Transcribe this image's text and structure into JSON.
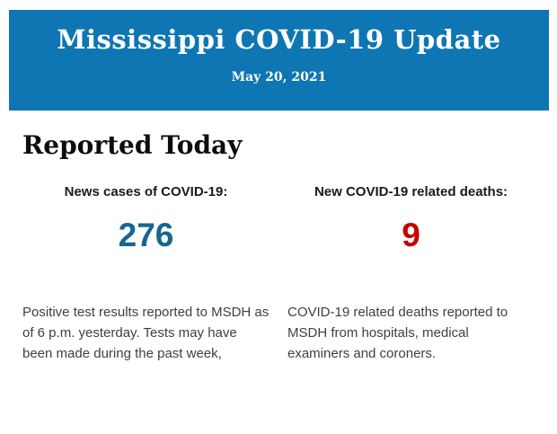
{
  "colors": {
    "banner-bg": "#0E76B2",
    "banner-text": "#FFFFFF",
    "heading-text": "#0D0D0D",
    "label-text": "#1A1A1A",
    "body-text": "#3F3F3F",
    "cases-number": "#16678F",
    "deaths-number": "#C80000"
  },
  "banner": {
    "title": "Mississippi COVID-19 Update",
    "date": "May 20, 2021"
  },
  "main": {
    "heading": "Reported Today",
    "stats": [
      {
        "label": "News cases of COVID-19:",
        "value": "276",
        "description": "Positive test results reported to MSDH as of 6 p.m. yesterday. Tests may have been made during the past week,"
      },
      {
        "label": "New COVID-19 related deaths:",
        "value": "9",
        "description": "COVID-19 related deaths reported to MSDH from hospitals, medical examiners and coroners."
      }
    ]
  }
}
